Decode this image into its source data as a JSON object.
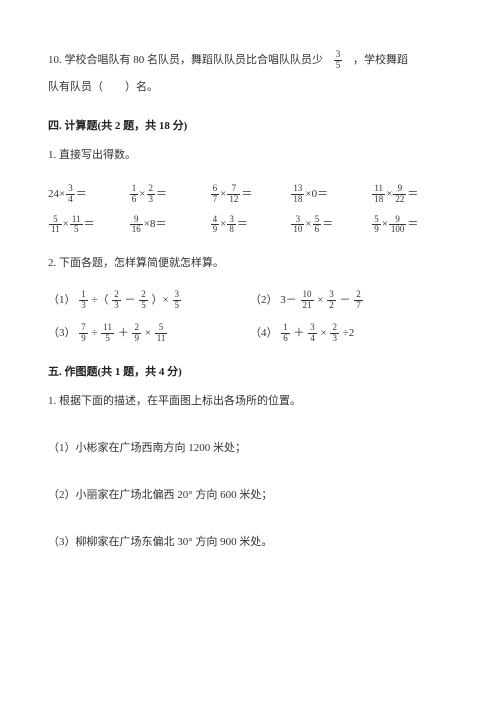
{
  "q10": {
    "prefix": "10. 学校合唱队有 80 名队员，舞蹈队队员比合唱队队员少",
    "frac_n": "3",
    "frac_d": "5",
    "suffix": "，学校舞蹈",
    "line2": "队有队员（　　）名。"
  },
  "sec4_title": "四. 计算题(共 2 题，共 18 分)",
  "q4_1_title": "1. 直接写出得数。",
  "calc_row1": [
    {
      "a_n": "",
      "a_d": "",
      "a_whole": "24",
      "op": "×",
      "b_n": "3",
      "b_d": "4",
      "b_whole": "",
      "eq": "＝"
    },
    {
      "a_n": "1",
      "a_d": "6",
      "a_whole": "",
      "op": "×",
      "b_n": "2",
      "b_d": "3",
      "b_whole": "",
      "eq": "＝"
    },
    {
      "a_n": "6",
      "a_d": "7",
      "a_whole": "",
      "op": "×",
      "b_n": "7",
      "b_d": "12",
      "b_whole": "",
      "eq": "＝"
    },
    {
      "a_n": "13",
      "a_d": "18",
      "a_whole": "",
      "op": "×",
      "b_n": "",
      "b_d": "",
      "b_whole": "0",
      "eq": "＝"
    },
    {
      "a_n": "11",
      "a_d": "18",
      "a_whole": "",
      "op": "×",
      "b_n": "9",
      "b_d": "22",
      "b_whole": "",
      "eq": "＝"
    }
  ],
  "calc_row2": [
    {
      "a_n": "5",
      "a_d": "11",
      "a_whole": "",
      "op": "×",
      "b_n": "11",
      "b_d": "5",
      "b_whole": "",
      "eq": "＝"
    },
    {
      "a_n": "9",
      "a_d": "16",
      "a_whole": "",
      "op": "×",
      "b_n": "",
      "b_d": "",
      "b_whole": "8",
      "eq": "＝"
    },
    {
      "a_n": "4",
      "a_d": "9",
      "a_whole": "",
      "op": "×",
      "b_n": "3",
      "b_d": "8",
      "b_whole": "",
      "eq": "＝"
    },
    {
      "a_n": "3",
      "a_d": "10",
      "a_whole": "",
      "op": "×",
      "b_n": "5",
      "b_d": "6",
      "b_whole": "",
      "eq": "＝"
    },
    {
      "a_n": "5",
      "a_d": "9",
      "a_whole": "",
      "op": "×",
      "b_n": "9",
      "b_d": "100",
      "b_whole": "",
      "eq": "＝"
    }
  ],
  "q4_2_title": "2. 下面各题，怎样算简便就怎样算。",
  "expr1": {
    "label": "（1）",
    "f1_n": "1",
    "f1_d": "3",
    "op1": "÷（",
    "f2_n": "2",
    "f2_d": "3",
    "op2": "－",
    "f3_n": "2",
    "f3_d": "5",
    "op3": "）×",
    "f4_n": "3",
    "f4_d": "5"
  },
  "expr2": {
    "label": "（2）",
    "pre": "3－",
    "f1_n": "10",
    "f1_d": "21",
    "op1": "×",
    "f2_n": "3",
    "f2_d": "2",
    "op2": "－",
    "f3_n": "2",
    "f3_d": "7"
  },
  "expr3": {
    "label": "（3）",
    "f1_n": "7",
    "f1_d": "9",
    "op1": "÷",
    "f2_n": "11",
    "f2_d": "5",
    "op2": "＋",
    "f3_n": "2",
    "f3_d": "9",
    "op3": "×",
    "f4_n": "5",
    "f4_d": "11"
  },
  "expr4": {
    "label": "（4）",
    "f1_n": "1",
    "f1_d": "6",
    "op1": "＋",
    "f2_n": "3",
    "f2_d": "4",
    "op2": "×",
    "f3_n": "2",
    "f3_d": "3",
    "op3": "÷2"
  },
  "sec5_title": "五. 作图题(共 1 题，共 4 分)",
  "q5_1_title": "1. 根据下面的描述，在平面图上标出各场所的位置。",
  "loc1": "（1）小彬家在广场西南方向 1200 米处；",
  "loc2": "（2）小丽家在广场北偏西 20° 方向 600 米处；",
  "loc3": "（3）柳柳家在广场东偏北 30° 方向 900 米处。"
}
